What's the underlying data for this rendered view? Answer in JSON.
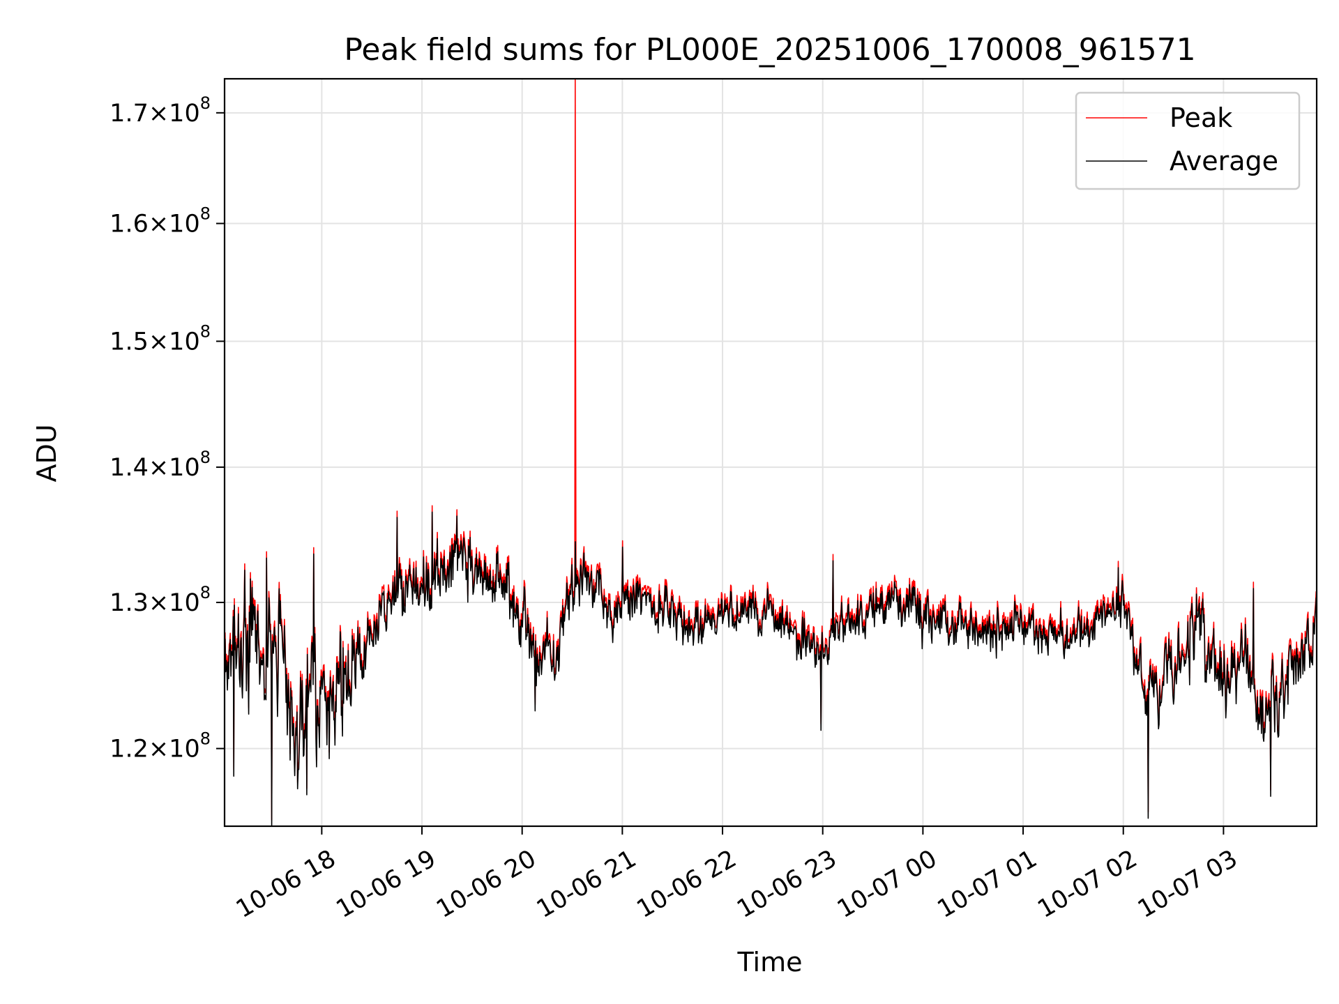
{
  "chart_data": {
    "type": "line",
    "title": "Peak field sums for PL000E_20251006_170008_961571",
    "xlabel": "Time",
    "ylabel": "ADU",
    "yscale": "log",
    "ylim": [
      115000000,
      173200000
    ],
    "xlim_hours": [
      17.03,
      27.93
    ],
    "grid": true,
    "legend_position": "upper right",
    "x_ticks": [
      {
        "label": "10-06 18",
        "hour": 18
      },
      {
        "label": "10-06 19",
        "hour": 19
      },
      {
        "label": "10-06 20",
        "hour": 20
      },
      {
        "label": "10-06 21",
        "hour": 21
      },
      {
        "label": "10-06 22",
        "hour": 22
      },
      {
        "label": "10-06 23",
        "hour": 23
      },
      {
        "label": "10-07 00",
        "hour": 24
      },
      {
        "label": "10-07 01",
        "hour": 25
      },
      {
        "label": "10-07 02",
        "hour": 26
      },
      {
        "label": "10-07 03",
        "hour": 27
      }
    ],
    "y_ticks": [
      {
        "mantissa": "1.2",
        "exp": "8",
        "value": 120000000
      },
      {
        "mantissa": "1.3",
        "exp": "8",
        "value": 130000000
      },
      {
        "mantissa": "1.4",
        "exp": "8",
        "value": 140000000
      },
      {
        "mantissa": "1.5",
        "exp": "8",
        "value": 150000000
      },
      {
        "mantissa": "1.6",
        "exp": "8",
        "value": 160000000
      },
      {
        "mantissa": "1.7",
        "exp": "8",
        "value": 170000000
      }
    ],
    "series": [
      {
        "name": "Peak",
        "color": "#ff0000",
        "note": "tracks Average ~0.3% higher, with one spike",
        "spike": {
          "hour": 20.53,
          "value": 173200000
        }
      },
      {
        "name": "Average",
        "color": "#000000",
        "trend": [
          [
            17.03,
            124000000
          ],
          [
            17.15,
            127000000
          ],
          [
            17.3,
            129500000
          ],
          [
            17.45,
            124500000
          ],
          [
            17.6,
            127500000
          ],
          [
            17.75,
            121000000
          ],
          [
            17.9,
            124500000
          ],
          [
            18.0,
            123000000
          ],
          [
            18.2,
            125000000
          ],
          [
            18.4,
            126500000
          ],
          [
            18.6,
            129000000
          ],
          [
            18.8,
            131000000
          ],
          [
            19.0,
            131500000
          ],
          [
            19.2,
            132500000
          ],
          [
            19.4,
            132800000
          ],
          [
            19.6,
            132000000
          ],
          [
            19.8,
            131000000
          ],
          [
            20.0,
            128500000
          ],
          [
            20.2,
            126000000
          ],
          [
            20.35,
            126500000
          ],
          [
            20.5,
            130500000
          ],
          [
            20.65,
            132000000
          ],
          [
            20.8,
            131000000
          ],
          [
            20.9,
            129000000
          ],
          [
            21.1,
            130500000
          ],
          [
            21.4,
            129500000
          ],
          [
            21.7,
            128500000
          ],
          [
            22.0,
            129000000
          ],
          [
            22.3,
            129500000
          ],
          [
            22.6,
            128500000
          ],
          [
            22.8,
            127500000
          ],
          [
            23.0,
            126000000
          ],
          [
            23.2,
            128500000
          ],
          [
            23.5,
            129500000
          ],
          [
            23.7,
            130500000
          ],
          [
            24.0,
            129000000
          ],
          [
            24.3,
            128500000
          ],
          [
            24.6,
            128000000
          ],
          [
            25.0,
            128500000
          ],
          [
            25.3,
            127500000
          ],
          [
            25.6,
            127500000
          ],
          [
            25.8,
            129500000
          ],
          [
            26.05,
            129500000
          ],
          [
            26.2,
            123500000
          ],
          [
            26.4,
            124500000
          ],
          [
            26.6,
            126500000
          ],
          [
            26.75,
            128500000
          ],
          [
            26.85,
            127500000
          ],
          [
            26.95,
            124500000
          ],
          [
            27.1,
            125500000
          ],
          [
            27.25,
            125500000
          ],
          [
            27.4,
            121500000
          ],
          [
            27.55,
            123500000
          ],
          [
            27.7,
            124500000
          ],
          [
            27.93,
            128500000
          ]
        ],
        "dips": [
          {
            "hour": 17.12,
            "value": 118200000
          },
          {
            "hour": 17.5,
            "value": 115000000
          },
          {
            "hour": 17.85,
            "value": 117000000
          },
          {
            "hour": 17.95,
            "value": 118800000
          },
          {
            "hour": 20.13,
            "value": 122500000
          },
          {
            "hour": 22.98,
            "value": 121200000
          },
          {
            "hour": 26.25,
            "value": 115500000
          },
          {
            "hour": 27.47,
            "value": 116900000
          },
          {
            "hour": 27.88,
            "value": 125800000
          }
        ],
        "peaks": [
          {
            "hour": 17.45,
            "value": 133200000
          },
          {
            "hour": 17.92,
            "value": 133500000
          },
          {
            "hour": 18.75,
            "value": 136200000
          },
          {
            "hour": 19.1,
            "value": 136600000
          },
          {
            "hour": 19.35,
            "value": 136300000
          },
          {
            "hour": 20.53,
            "value": 134400000
          },
          {
            "hour": 21.0,
            "value": 134000000
          },
          {
            "hour": 23.1,
            "value": 133000000
          },
          {
            "hour": 25.95,
            "value": 132500000
          },
          {
            "hour": 26.73,
            "value": 130600000
          },
          {
            "hour": 27.3,
            "value": 131000000
          }
        ]
      }
    ]
  }
}
